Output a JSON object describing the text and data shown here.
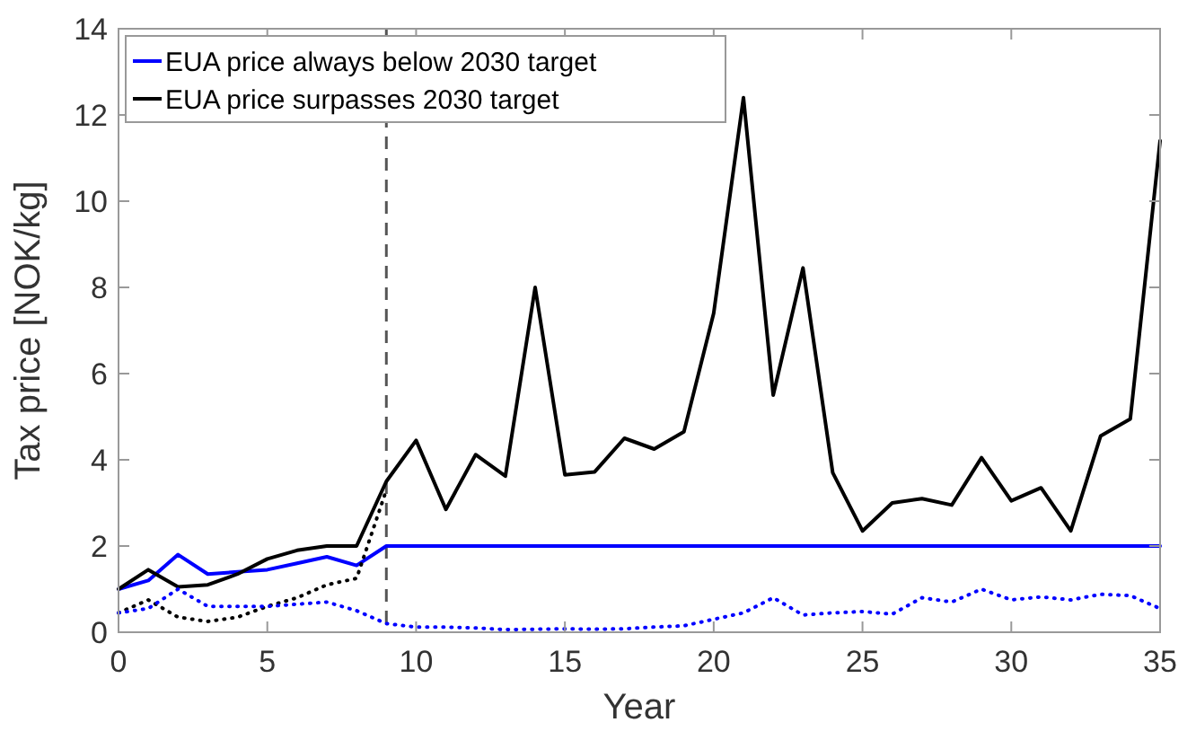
{
  "chart_data": {
    "type": "line",
    "xlabel": "Year",
    "ylabel": "Tax price [NOK/kg]",
    "xlim": [
      0,
      35
    ],
    "ylim": [
      0,
      14
    ],
    "xticks": [
      0,
      5,
      10,
      15,
      20,
      25,
      30,
      35
    ],
    "yticks": [
      0,
      2,
      4,
      6,
      8,
      10,
      12,
      14
    ],
    "grid": false,
    "legend": "top left",
    "marker": "none",
    "x": [
      0,
      1,
      2,
      3,
      4,
      5,
      6,
      7,
      8,
      9,
      10,
      11,
      12,
      13,
      14,
      15,
      16,
      17,
      18,
      19,
      20,
      21,
      22,
      23,
      24,
      25,
      26,
      27,
      28,
      29,
      30,
      31,
      32,
      33,
      34,
      35
    ],
    "series": [
      {
        "name": "EUA price always below 2030 target",
        "color": "#0000ff",
        "line_style": "solid",
        "values": [
          1.0,
          1.2,
          1.8,
          1.35,
          1.4,
          1.45,
          1.6,
          1.75,
          1.55,
          2,
          2,
          2,
          2,
          2,
          2,
          2,
          2,
          2,
          2,
          2,
          2,
          2,
          2,
          2,
          2,
          2,
          2,
          2,
          2,
          2,
          2,
          2,
          2,
          2,
          2,
          2
        ]
      },
      {
        "name": "EUA price surpasses 2030 target",
        "color": "#000000",
        "line_style": "solid",
        "values": [
          1.0,
          1.45,
          1.05,
          1.1,
          1.35,
          1.7,
          1.9,
          2.0,
          2.0,
          3.5,
          4.45,
          2.85,
          4.12,
          3.62,
          8.0,
          3.65,
          3.72,
          4.5,
          4.25,
          4.65,
          7.4,
          12.4,
          5.5,
          8.45,
          3.7,
          2.35,
          3.0,
          3.1,
          2.95,
          4.05,
          3.05,
          3.35,
          2.35,
          4.55,
          4.95,
          11.4
        ]
      },
      {
        "color": "#000000",
        "line_style": "dotted",
        "x": [
          0,
          1,
          2,
          3,
          4,
          5,
          6,
          7,
          8,
          9
        ],
        "values": [
          0.45,
          0.75,
          0.35,
          0.25,
          0.35,
          0.6,
          0.8,
          1.1,
          1.25,
          3.3
        ]
      },
      {
        "color": "#0000ff",
        "line_style": "dotted",
        "values": [
          0.45,
          0.55,
          1.0,
          0.6,
          0.6,
          0.6,
          0.65,
          0.7,
          0.5,
          0.2,
          0.12,
          0.12,
          0.1,
          0.06,
          0.07,
          0.08,
          0.07,
          0.08,
          0.12,
          0.15,
          0.3,
          0.45,
          0.8,
          0.4,
          0.45,
          0.48,
          0.42,
          0.8,
          0.7,
          1.0,
          0.75,
          0.82,
          0.75,
          0.88,
          0.85,
          0.55
        ]
      }
    ],
    "ref_lines": [
      {
        "axis": "x",
        "value": 9,
        "color": "#555555",
        "line_style": "dashed"
      }
    ]
  }
}
